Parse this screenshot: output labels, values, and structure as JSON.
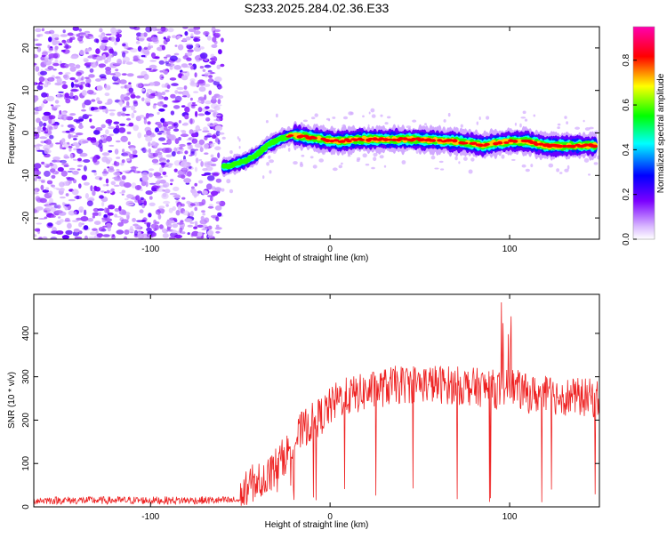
{
  "figure_title": "S233.2025.284.02.36.E33",
  "colorbar": {
    "label": "Normalized spectral amplitude",
    "ticks": [
      "0.0",
      "0.2",
      "0.4",
      "0.6",
      "0.8"
    ],
    "tick_values": [
      0.0,
      0.2,
      0.4,
      0.6,
      0.8
    ],
    "range": [
      0,
      0.95
    ],
    "colors": [
      "#ffffff",
      "#d9b8ff",
      "#7b00ff",
      "#0000ff",
      "#00ffff",
      "#00ff00",
      "#ffff00",
      "#ff0000",
      "#ff00b0"
    ]
  },
  "chart_data": [
    {
      "type": "heatmap",
      "title": "S233.2025.284.02.36.E33",
      "xlabel": "Height of straight line (km)",
      "ylabel": "Frequency (Hz)",
      "xlim": [
        -165,
        150
      ],
      "ylim": [
        -25,
        25
      ],
      "xticks": [
        -100,
        0,
        100
      ],
      "xtick_labels": [
        "-100",
        "0",
        "100"
      ],
      "yticks": [
        -20,
        -10,
        0,
        10,
        20
      ],
      "ytick_labels": [
        "-20",
        "-10",
        "0",
        "10",
        "20"
      ],
      "noise_region_x": [
        -165,
        -60
      ],
      "ridge_x": [
        -58,
        -50,
        -42,
        -35,
        -28,
        -22,
        -15,
        -5,
        5,
        15,
        30,
        50,
        70,
        80,
        85,
        90,
        100,
        110,
        120,
        150
      ],
      "ridge_freq": [
        -8,
        -7,
        -5.5,
        -3,
        -1.5,
        -0.5,
        -0.8,
        -1.5,
        -2,
        -1.5,
        -1.5,
        -1.5,
        -2,
        -2.5,
        -3,
        -2.5,
        -2,
        -2,
        -3,
        -3
      ]
    },
    {
      "type": "line",
      "xlabel": "Height of straight line (km)",
      "ylabel": "SNR (10 * v/v)",
      "xlim": [
        -165,
        150
      ],
      "ylim": [
        0,
        490
      ],
      "xticks": [
        -100,
        0,
        100
      ],
      "xtick_labels": [
        "-100",
        "0",
        "100"
      ],
      "yticks": [
        0,
        100,
        200,
        300,
        400
      ],
      "ytick_labels": [
        "0",
        "100",
        "200",
        "300",
        "400"
      ],
      "series": [
        {
          "name": "SNR",
          "color": "#ee2222",
          "envelope_x": [
            -165,
            -50,
            -45,
            -40,
            -35,
            -25,
            -15,
            -5,
            5,
            15,
            25,
            35,
            50,
            70,
            85,
            95,
            100,
            110,
            130,
            150
          ],
          "envelope_base": [
            15,
            15,
            50,
            60,
            70,
            120,
            180,
            210,
            250,
            260,
            270,
            280,
            285,
            280,
            275,
            270,
            280,
            260,
            255,
            250
          ]
        }
      ]
    }
  ]
}
